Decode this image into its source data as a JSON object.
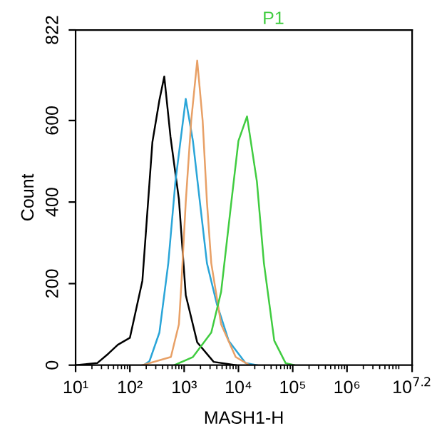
{
  "chart_data": {
    "type": "line",
    "title": "P1",
    "xlabel": "MASH1-H",
    "ylabel": "Count",
    "log": "x",
    "xlim": [
      10,
      15848932
    ],
    "ylim": [
      0,
      822
    ],
    "xticks": [
      {
        "value": 10,
        "label": "10¹"
      },
      {
        "value": 100,
        "label": "10²"
      },
      {
        "value": 1000,
        "label": "10³"
      },
      {
        "value": 10000,
        "label": "10⁴"
      },
      {
        "value": 100000,
        "label": "10⁵"
      },
      {
        "value": 1000000,
        "label": "10⁶"
      },
      {
        "value": 15848932,
        "label": "10$^{7.2}$"
      }
    ],
    "yticks": [
      0,
      200,
      400,
      600,
      822
    ],
    "grid": false,
    "legend": false,
    "marker": "none",
    "line_style": "solid",
    "series": [
      {
        "color": "#000000",
        "x": [
          10,
          25,
          40,
          60,
          100,
          170,
          260,
          350,
          430,
          560,
          800,
          1070,
          1740,
          3500,
          9000
        ],
        "values": [
          0,
          5,
          28,
          50,
          67,
          207,
          547,
          650,
          708,
          560,
          407,
          172,
          56,
          8,
          0
        ]
      },
      {
        "color": "#2aa5d8",
        "x": [
          180,
          230,
          350,
          510,
          690,
          1070,
          1450,
          1950,
          2630,
          4000,
          6600,
          13500,
          22000
        ],
        "values": [
          0,
          10,
          80,
          250,
          450,
          653,
          550,
          400,
          250,
          150,
          60,
          5,
          0
        ]
      },
      {
        "color": "#e8a066",
        "x": [
          170,
          570,
          800,
          890,
          1070,
          1350,
          1740,
          2190,
          2630,
          3160,
          4800,
          8900,
          16000
        ],
        "values": [
          0,
          20,
          100,
          200,
          400,
          600,
          747,
          600,
          400,
          250,
          100,
          20,
          0
        ]
      },
      {
        "color": "#40cc40",
        "x": [
          660,
          1450,
          3160,
          4800,
          7400,
          10000,
          14400,
          21900,
          29500,
          45700,
          74000,
          107000
        ],
        "values": [
          0,
          20,
          80,
          180,
          400,
          550,
          610,
          450,
          250,
          60,
          5,
          0
        ]
      }
    ]
  }
}
